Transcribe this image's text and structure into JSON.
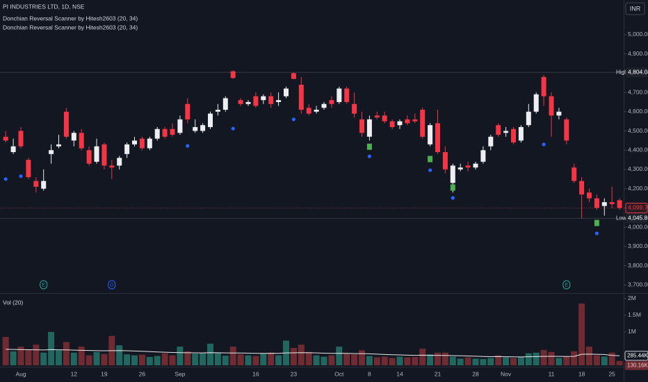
{
  "chart_data": {
    "type": "candlestick",
    "title": "PI INDUSTRIES LTD, 1D, NSE",
    "legend": [
      "Donchian Reversal Scanner by Hitesh2603 (20, 34)",
      "Donchian Reversal Scanner by Hitesh2603 (20, 34)"
    ],
    "currency": "INR",
    "categories": [
      null,
      null,
      "Aug",
      null,
      null,
      null,
      null,
      null,
      null,
      "12",
      null,
      null,
      null,
      "19",
      null,
      null,
      null,
      null,
      "26",
      null,
      null,
      null,
      null,
      "Sep",
      null,
      null,
      null,
      null,
      null,
      null,
      null,
      null,
      null,
      "16",
      null,
      null,
      null,
      null,
      "23",
      null,
      null,
      null,
      null,
      null,
      "Oct",
      null,
      null,
      null,
      "8",
      null,
      null,
      null,
      "14",
      null,
      null,
      null,
      null,
      "21",
      null,
      null,
      null,
      null,
      "28",
      null,
      null,
      null,
      "Nov",
      null,
      null,
      null,
      null,
      null,
      "11",
      null,
      null,
      null,
      "18",
      null,
      null,
      null,
      "25",
      null
    ],
    "open": [
      4470,
      4390,
      4500,
      4350,
      4240,
      4200,
      4380,
      4420,
      4600,
      4450,
      4490,
      4400,
      4340,
      4430,
      4320,
      4320,
      4380,
      4430,
      4460,
      4410,
      4460,
      4510,
      4510,
      4490,
      4640,
      4500,
      4500,
      4520,
      4600,
      4610,
      4810,
      4660,
      4640,
      4680,
      4660,
      4680,
      4650,
      4680,
      4800,
      4740,
      4620,
      4600,
      4620,
      4660,
      4650,
      4720,
      4640,
      4560,
      4470,
      4580,
      4580,
      4550,
      4530,
      4560,
      4560,
      4610,
      4430,
      4540,
      4390,
      4230,
      4300,
      4320,
      4310,
      4340,
      4420,
      4530,
      4490,
      4510,
      4450,
      4530,
      4600,
      4780,
      4680,
      4580,
      4560,
      4310,
      4240,
      4180,
      4150,
      4110,
      4130,
      4140
    ],
    "high": [
      4500,
      4460,
      4520,
      4360,
      4260,
      4300,
      4430,
      4480,
      4620,
      4500,
      4510,
      4420,
      4460,
      4440,
      4350,
      4370,
      4440,
      4470,
      4470,
      4470,
      4520,
      4520,
      4540,
      4580,
      4670,
      4560,
      4540,
      4600,
      4640,
      4680,
      4815,
      4670,
      4660,
      4700,
      4690,
      4700,
      4700,
      4730,
      4804.05,
      4780,
      4640,
      4630,
      4650,
      4680,
      4730,
      4730,
      4700,
      4600,
      4580,
      4600,
      4600,
      4560,
      4560,
      4580,
      4590,
      4620,
      4540,
      4610,
      4420,
      4330,
      4330,
      4340,
      4340,
      4420,
      4480,
      4540,
      4520,
      4520,
      4530,
      4640,
      4700,
      4790,
      4700,
      4620,
      4570,
      4330,
      4260,
      4200,
      4170,
      4150,
      4210,
      4150
    ],
    "low": [
      4440,
      4380,
      4410,
      4250,
      4180,
      4190,
      4330,
      4410,
      4460,
      4420,
      4400,
      4320,
      4330,
      4300,
      4250,
      4300,
      4360,
      4420,
      4400,
      4400,
      4450,
      4460,
      4470,
      4480,
      4540,
      4490,
      4490,
      4510,
      4580,
      4600,
      4770,
      4630,
      4630,
      4620,
      4640,
      4620,
      4630,
      4670,
      4770,
      4590,
      4580,
      4590,
      4610,
      4620,
      4640,
      4640,
      4570,
      4470,
      4450,
      4560,
      4540,
      4510,
      4510,
      4530,
      4540,
      4460,
      4420,
      4380,
      4280,
      4180,
      4290,
      4290,
      4300,
      4330,
      4400,
      4470,
      4470,
      4430,
      4440,
      4520,
      4590,
      4630,
      4470,
      4560,
      4430,
      4230,
      4045.85,
      4130,
      4090,
      4060,
      4100,
      4090
    ],
    "close": [
      4450,
      4420,
      4420,
      4260,
      4210,
      4240,
      4400,
      4430,
      4470,
      4490,
      4410,
      4330,
      4420,
      4320,
      4310,
      4360,
      4430,
      4450,
      4410,
      4460,
      4510,
      4470,
      4480,
      4560,
      4560,
      4520,
      4530,
      4590,
      4610,
      4670,
      4775,
      4640,
      4650,
      4630,
      4680,
      4640,
      4660,
      4720,
      4770,
      4610,
      4590,
      4610,
      4640,
      4640,
      4720,
      4650,
      4590,
      4490,
      4560,
      4570,
      4550,
      4520,
      4550,
      4540,
      4550,
      4470,
      4530,
      4390,
      4300,
      4320,
      4310,
      4310,
      4330,
      4400,
      4470,
      4480,
      4500,
      4440,
      4520,
      4600,
      4690,
      4680,
      4580,
      4600,
      4450,
      4240,
      4170,
      4150,
      4100,
      4130,
      4120,
      4099.7
    ],
    "up_color": "#eceef2",
    "down_color": "#f23645",
    "ylim": [
      3665,
      5180
    ],
    "yticks": [
      {
        "value": 3700,
        "label": "3,700.00"
      },
      {
        "value": 3800,
        "label": "3,800.00"
      },
      {
        "value": 3900,
        "label": "3,900.00"
      },
      {
        "value": 4000,
        "label": "4,000.00"
      },
      {
        "value": 4100,
        "label": "4,100.00"
      },
      {
        "value": 4200,
        "label": "4,200.00"
      },
      {
        "value": 4300,
        "label": "4,300.00"
      },
      {
        "value": 4400,
        "label": "4,400.00"
      },
      {
        "value": 4500,
        "label": "4,500.00"
      },
      {
        "value": 4600,
        "label": "4,600.00"
      },
      {
        "value": 4700,
        "label": "4,700.00"
      },
      {
        "value": 4800,
        "label": "4,800.00"
      },
      {
        "value": 4900,
        "label": "4,900.00"
      },
      {
        "value": 5000,
        "label": "5,000.00"
      }
    ],
    "high_line": {
      "name": "High",
      "value": 4804.05,
      "label": "4,804.05"
    },
    "low_line": {
      "name": "Low",
      "value": 4045.85,
      "label": "4,045.85"
    },
    "last_price": {
      "value": 4099.7,
      "label": "4,099.70"
    },
    "signal_dots": [
      4250,
      null,
      4265,
      null,
      null,
      null,
      null,
      null,
      null,
      null,
      null,
      null,
      null,
      null,
      null,
      null,
      null,
      null,
      null,
      null,
      null,
      null,
      null,
      null,
      4422,
      null,
      null,
      null,
      null,
      null,
      4512,
      null,
      null,
      null,
      null,
      null,
      null,
      null,
      4560,
      null,
      null,
      null,
      null,
      null,
      null,
      null,
      null,
      null,
      4368,
      null,
      null,
      null,
      null,
      null,
      null,
      null,
      4296,
      null,
      null,
      4152,
      null,
      null,
      null,
      null,
      null,
      null,
      null,
      null,
      null,
      null,
      null,
      4430,
      null,
      null,
      null,
      null,
      null,
      null,
      3968,
      null,
      null,
      null
    ],
    "signal_dot_color": "#2962ff",
    "signal_squares": [
      null,
      null,
      null,
      null,
      null,
      null,
      null,
      null,
      null,
      null,
      null,
      null,
      null,
      null,
      null,
      null,
      null,
      null,
      null,
      null,
      null,
      null,
      null,
      null,
      null,
      null,
      null,
      null,
      null,
      null,
      null,
      null,
      null,
      null,
      null,
      null,
      null,
      null,
      null,
      null,
      null,
      null,
      null,
      null,
      null,
      null,
      null,
      null,
      4418,
      null,
      null,
      null,
      null,
      null,
      null,
      null,
      4354,
      null,
      null,
      4206,
      null,
      null,
      null,
      null,
      null,
      null,
      null,
      null,
      null,
      null,
      null,
      null,
      null,
      null,
      null,
      null,
      null,
      null,
      4022,
      null,
      null,
      null
    ],
    "signal_square_color": "#4caf50",
    "events": [
      null,
      null,
      null,
      null,
      null,
      {
        "label": "E",
        "color": "#26a69a"
      },
      null,
      null,
      null,
      null,
      null,
      null,
      null,
      null,
      {
        "label": "D",
        "color": "#2962ff"
      },
      null,
      null,
      null,
      null,
      null,
      null,
      null,
      null,
      null,
      null,
      null,
      null,
      null,
      null,
      null,
      null,
      null,
      null,
      null,
      null,
      null,
      null,
      null,
      null,
      null,
      null,
      null,
      null,
      null,
      null,
      null,
      null,
      null,
      null,
      null,
      null,
      null,
      null,
      null,
      null,
      null,
      null,
      null,
      null,
      null,
      null,
      null,
      null,
      null,
      null,
      null,
      null,
      null,
      null,
      null,
      null,
      null,
      null,
      null,
      {
        "label": "E",
        "color": "#26a69a"
      },
      null,
      null,
      null,
      null,
      null,
      null,
      null
    ],
    "volume": {
      "title": "Vol (20)",
      "values": [
        850000,
        420000,
        560000,
        480000,
        620000,
        380000,
        1000000,
        450000,
        700000,
        380000,
        560000,
        300000,
        400000,
        340000,
        880000,
        600000,
        330000,
        300000,
        320000,
        250000,
        280000,
        360000,
        300000,
        560000,
        420000,
        350000,
        360000,
        650000,
        380000,
        290000,
        560000,
        330000,
        300000,
        280000,
        360000,
        380000,
        300000,
        740000,
        520000,
        620000,
        400000,
        300000,
        260000,
        300000,
        560000,
        360000,
        330000,
        450000,
        280000,
        240000,
        260000,
        220000,
        260000,
        240000,
        250000,
        500000,
        330000,
        380000,
        380000,
        260000,
        200000,
        240000,
        200000,
        190000,
        220000,
        300000,
        240000,
        220000,
        250000,
        360000,
        380000,
        460000,
        400000,
        220000,
        260000,
        420000,
        1850000,
        560000,
        300000,
        260000,
        380000,
        130160
      ],
      "ma": [
        480000,
        475000,
        470000,
        468000,
        465000,
        460000,
        470000,
        465000,
        462000,
        455000,
        450000,
        445000,
        440000,
        438000,
        440000,
        442000,
        438000,
        430000,
        420000,
        410000,
        400000,
        392000,
        385000,
        380000,
        378000,
        375000,
        372000,
        380000,
        378000,
        372000,
        370000,
        368000,
        365000,
        360000,
        358000,
        362000,
        360000,
        372000,
        375000,
        380000,
        378000,
        372000,
        365000,
        360000,
        362000,
        358000,
        352000,
        350000,
        345000,
        335000,
        325000,
        318000,
        312000,
        305000,
        300000,
        305000,
        300000,
        298000,
        296000,
        292000,
        285000,
        280000,
        272000,
        265000,
        260000,
        262000,
        258000,
        255000,
        252000,
        258000,
        262000,
        268000,
        270000,
        268000,
        265000,
        268000,
        330000,
        335000,
        330000,
        325000,
        300000,
        285440
      ],
      "ma_last_label": "285.44K",
      "last_label": "130.16K",
      "up_color": "#22675f",
      "down_color": "#6f2b32",
      "ma_color": "#e8e8e8",
      "ylim": [
        0,
        2080000
      ],
      "yticks": [
        {
          "value": 1000000,
          "label": "1M"
        },
        {
          "value": 1500000,
          "label": "1.5M"
        },
        {
          "value": 2000000,
          "label": "2M"
        }
      ]
    }
  }
}
